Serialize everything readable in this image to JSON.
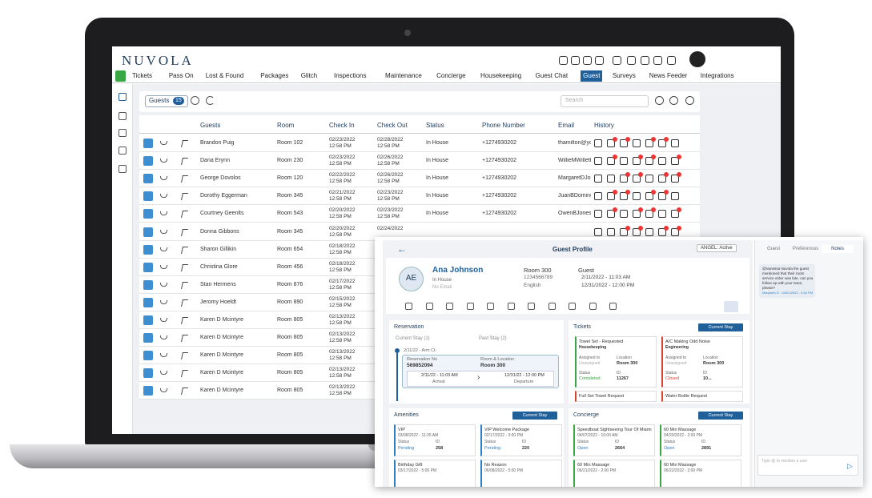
{
  "app": {
    "brand": "NUVOLA",
    "nav": [
      "Tickets",
      "Pass On",
      "Lost & Found",
      "Packages",
      "Glitch",
      "Inspections",
      "Maintenance",
      "Concierge",
      "Housekeeping",
      "Guest Chat",
      "Guest",
      "Surveys",
      "News Feeder",
      "Integrations"
    ],
    "toolbar": {
      "label": "Guests",
      "count": "15",
      "search_placeholder": "Search"
    },
    "table": {
      "columns": [
        "Guests",
        "Room",
        "Check In",
        "Check Out",
        "Status",
        "Phone Number",
        "Email",
        "History"
      ],
      "rows": [
        {
          "name": "Brandon Puig",
          "room": "Room 102",
          "check_in": "02/23/2022",
          "check_in_time": "12:58 PM",
          "check_out": "02/28/2022",
          "check_out_time": "12:58 PM",
          "status": "In House",
          "phone": "+1274930202",
          "email": "thamilton@you"
        },
        {
          "name": "Dana Erynn",
          "room": "Room 230",
          "check_in": "02/23/2022",
          "check_in_time": "12:58 PM",
          "check_out": "02/26/2022",
          "check_out_time": "12:58 PM",
          "status": "In House",
          "phone": "+1274930202",
          "email": "WillieMWillett"
        },
        {
          "name": "George Dovolos",
          "room": "Room 120",
          "check_in": "02/22/2022",
          "check_in_time": "12:58 PM",
          "check_out": "02/26/2022",
          "check_out_time": "12:58 PM",
          "status": "In House",
          "phone": "+1274930202",
          "email": "MargaretDJone"
        },
        {
          "name": "Dorothy Eggerman",
          "room": "Room 345",
          "check_in": "02/21/2022",
          "check_in_time": "12:58 PM",
          "check_out": "02/23/2022",
          "check_out_time": "12:58 PM",
          "status": "In House",
          "phone": "+1274930202",
          "email": "JuanBDoming"
        },
        {
          "name": "Courtney Geenlts",
          "room": "Room 543",
          "check_in": "02/20/2022",
          "check_in_time": "12:58 PM",
          "check_out": "02/23/2022",
          "check_out_time": "12:58 PM",
          "status": "In House",
          "phone": "+1274930202",
          "email": "OwenBJones@"
        },
        {
          "name": "Donna Gibbons",
          "room": "Room 345",
          "check_in": "02/20/2022",
          "check_in_time": "12:58 PM",
          "check_out": "02/24/2022"
        },
        {
          "name": "Sharon Gillikin",
          "room": "Room 654",
          "check_in": "02/18/2022",
          "check_in_time": "12:58 PM"
        },
        {
          "name": "Christina Glore",
          "room": "Room 456",
          "check_in": "02/18/2022",
          "check_in_time": "12:58 PM"
        },
        {
          "name": "Stan Hermens",
          "room": "Room 876",
          "check_in": "02/17/2022",
          "check_in_time": "12:58 PM"
        },
        {
          "name": "Jeromy Hoeldt",
          "room": "Room 890",
          "check_in": "02/15/2022",
          "check_in_time": "12:58 PM"
        },
        {
          "name": "Karen D  Mcintyre",
          "room": "Room 805",
          "check_in": "02/13/2022",
          "check_in_time": "12:58 PM"
        },
        {
          "name": "Karen D  Mcintyre",
          "room": "Room 805",
          "check_in": "02/13/2022",
          "check_in_time": "12:58 PM"
        },
        {
          "name": "Karen D  Mcintyre",
          "room": "Room 805",
          "check_in": "02/13/2022",
          "check_in_time": "12:58 PM"
        },
        {
          "name": "Karen D  Mcintyre",
          "room": "Room 805",
          "check_in": "02/13/2022",
          "check_in_time": "12:58 PM"
        },
        {
          "name": "Karen D  Mcintyre",
          "room": "Room 805",
          "check_in": "02/13/2022",
          "check_in_time": "12:58 PM"
        }
      ]
    }
  },
  "profile": {
    "title": "Guest Profile",
    "agent_status": "ANGEL: Active",
    "tabs": [
      "Guest",
      "Preferences",
      "Notes"
    ],
    "initials": "AE",
    "name": "Ana Johnson",
    "stay_status": "In House",
    "email": "No Email",
    "room": "Room 300",
    "phone": "1234566789",
    "language": "English",
    "guest_type": "Guest",
    "arrival": "2/11/2022 - 11:03 AM",
    "departure": "12/31/2022 - 12:00 PM",
    "note": {
      "text": "@Vanessa Nuvola the guest mentioned that their room service order was late, can you follow up with your team, please?",
      "author": "Marybeth G - 04/01/2022 - 3:45 PM"
    },
    "note_input": "Type @ to mention a user",
    "reservation": {
      "title": "Reservation",
      "current_tab": "Current Stay (1)",
      "past_tab": "Past Stay (2)",
      "stay_label": "2/11/22 - Arm Ct.",
      "res_no_label": "Reservation No",
      "res_no": "569852094",
      "room_label": "Room & Location",
      "room": "Room 300",
      "arrival": "2/11/22 - 11:03 AM",
      "arrival_label": "Arrival",
      "departure": "12/31/22 - 12:00 PM",
      "departure_label": "Departure"
    },
    "tickets": {
      "title": "Tickets",
      "button": "Current Stay",
      "cards": [
        {
          "title": "Towel Set - Requested",
          "dept": "Housekeeping",
          "assigned_label": "Assigned to",
          "assigned": "Unassigned",
          "location_label": "Location",
          "location": "Room 300",
          "status_label": "Status",
          "status": "Completed",
          "id_label": "ID",
          "id": "11267"
        },
        {
          "title": "A/C Making Odd Noise",
          "dept": "Engineering",
          "assigned_label": "Assigned to",
          "assigned": "Unassigned",
          "location_label": "Location",
          "location": "Room 300",
          "status_label": "Status",
          "status": "Closed",
          "id_label": "ID",
          "id": "10..."
        }
      ],
      "more": [
        "Full Set Towel Request",
        "Water Bottle Request"
      ]
    },
    "amenities": {
      "title": "Amenities",
      "button": "Current Stay",
      "cards": [
        {
          "title": "VIP",
          "date": "03/08/2022 - 11:35 AM",
          "status_label": "Status",
          "status": "Pending",
          "id_label": "ID",
          "id": "258"
        },
        {
          "title": "VIP Welcome Package",
          "date": "02/17/2022 - 3:00 PM",
          "status_label": "Status",
          "status": "Pending",
          "id_label": "ID",
          "id": "220"
        },
        {
          "title": "Birthday Gift",
          "date": "03/17/2022 - 5:00 PM"
        },
        {
          "title": "No Reason",
          "date": "06/08/2022 - 5:00 PM"
        }
      ]
    },
    "concierge": {
      "title": "Concierge",
      "button": "Current Stay",
      "cards": [
        {
          "title": "Speedboat Sightseeing Tour Of Miami",
          "date": "04/07/2022 - 10:00 AM",
          "status_label": "Status",
          "status": "Open",
          "id_label": "ID",
          "id": "2664"
        },
        {
          "title": "60 Min Massage",
          "date": "04/20/2022 - 2:00 PM",
          "status_label": "Status",
          "status": "Open",
          "id_label": "ID",
          "id": "2891"
        },
        {
          "title": "60 Min Massage",
          "date": "06/21/2022 - 2:00 PM"
        },
        {
          "title": "60 Min Massage",
          "date": "06/22/2022 - 2:00 PM"
        }
      ]
    }
  }
}
